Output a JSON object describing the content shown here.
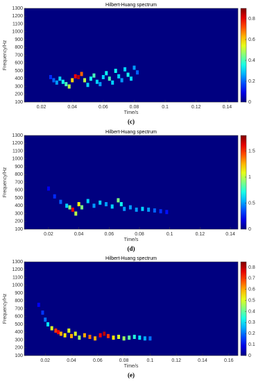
{
  "chart_data": [
    {
      "type": "spectrum",
      "title": "Hilbert-Huang spectrum",
      "x_label": "Time/s",
      "y_label": "Frequency/Hz",
      "caption": "(c)",
      "colormap": "jet",
      "xlim": [
        0.009,
        0.147
      ],
      "xticks": [
        0.02,
        0.04,
        0.06,
        0.08,
        0.1,
        0.12,
        0.14
      ],
      "ylim": [
        100,
        1300
      ],
      "yticks": [
        100,
        200,
        300,
        400,
        500,
        600,
        700,
        800,
        900,
        1000,
        1100,
        1200,
        1300
      ],
      "clim": [
        0,
        0.9
      ],
      "cticks": [
        0,
        0.2,
        0.4,
        0.6,
        0.8
      ],
      "x": [
        0.026,
        0.028,
        0.03,
        0.032,
        0.034,
        0.036,
        0.038,
        0.04,
        0.042,
        0.044,
        0.046,
        0.048,
        0.05,
        0.052,
        0.054,
        0.056,
        0.058,
        0.06,
        0.062,
        0.064,
        0.066,
        0.068,
        0.07,
        0.072,
        0.074,
        0.076,
        0.078,
        0.08,
        0.082
      ],
      "y": [
        420,
        380,
        350,
        400,
        360,
        330,
        300,
        380,
        430,
        420,
        460,
        380,
        320,
        400,
        440,
        360,
        330,
        420,
        470,
        400,
        350,
        500,
        430,
        380,
        520,
        450,
        400,
        540,
        480
      ],
      "values": [
        0.15,
        0.2,
        0.25,
        0.3,
        0.35,
        0.4,
        0.5,
        0.6,
        0.8,
        0.85,
        0.7,
        0.5,
        0.3,
        0.35,
        0.4,
        0.3,
        0.25,
        0.3,
        0.35,
        0.4,
        0.3,
        0.35,
        0.3,
        0.25,
        0.3,
        0.35,
        0.3,
        0.25,
        0.2
      ]
    },
    {
      "type": "spectrum",
      "title": "Hilbert-Huang spectrum",
      "x_label": "Time/s",
      "y_label": "Frequency/Hz",
      "caption": "(d)",
      "colormap": "jet",
      "xlim": [
        0.004,
        0.145
      ],
      "xticks": [
        0.02,
        0.04,
        0.06,
        0.08,
        0.1,
        0.12,
        0.14
      ],
      "ylim": [
        100,
        1300
      ],
      "yticks": [
        100,
        200,
        300,
        400,
        500,
        600,
        700,
        800,
        900,
        1000,
        1100,
        1200,
        1300
      ],
      "clim": [
        0,
        1.8
      ],
      "cticks": [
        0,
        0.5,
        1,
        1.5
      ],
      "x": [
        0.02,
        0.024,
        0.028,
        0.032,
        0.034,
        0.036,
        0.038,
        0.04,
        0.042,
        0.046,
        0.05,
        0.054,
        0.058,
        0.062,
        0.066,
        0.068,
        0.07,
        0.074,
        0.078,
        0.082,
        0.086,
        0.09,
        0.094,
        0.098
      ],
      "y": [
        620,
        520,
        450,
        400,
        380,
        350,
        300,
        420,
        380,
        460,
        400,
        440,
        420,
        390,
        470,
        420,
        360,
        380,
        350,
        360,
        350,
        340,
        330,
        320
      ],
      "values": [
        0.2,
        0.3,
        0.4,
        0.6,
        0.9,
        1.6,
        1.0,
        1.1,
        0.9,
        0.6,
        0.5,
        0.6,
        0.5,
        0.6,
        0.9,
        0.7,
        0.5,
        0.5,
        0.5,
        0.6,
        0.5,
        0.4,
        0.3,
        0.25
      ]
    },
    {
      "type": "spectrum",
      "title": "Hilbert-Huang spectrum",
      "x_label": "Time/s",
      "y_label": "Frequency/Hz",
      "caption": "(e)",
      "colormap": "jet",
      "xlim": [
        0.004,
        0.167
      ],
      "xticks": [
        0.02,
        0.04,
        0.06,
        0.08,
        0.1,
        0.12,
        0.14,
        0.16
      ],
      "ylim": [
        100,
        1300
      ],
      "yticks": [
        100,
        200,
        300,
        400,
        500,
        600,
        700,
        800,
        900,
        1000,
        1100,
        1200,
        1300
      ],
      "clim": [
        0,
        0.85
      ],
      "cticks": [
        0,
        0.1,
        0.2,
        0.3,
        0.4,
        0.5,
        0.6,
        0.7,
        0.8
      ],
      "x": [
        0.015,
        0.018,
        0.02,
        0.022,
        0.025,
        0.028,
        0.03,
        0.032,
        0.035,
        0.038,
        0.04,
        0.043,
        0.046,
        0.05,
        0.054,
        0.058,
        0.062,
        0.065,
        0.068,
        0.072,
        0.076,
        0.08,
        0.084,
        0.088,
        0.092,
        0.096,
        0.1
      ],
      "y": [
        750,
        650,
        560,
        500,
        450,
        420,
        400,
        380,
        360,
        420,
        350,
        380,
        330,
        360,
        340,
        320,
        360,
        380,
        350,
        330,
        340,
        320,
        330,
        340,
        330,
        320,
        320
      ],
      "values": [
        0.1,
        0.15,
        0.2,
        0.3,
        0.5,
        0.7,
        0.75,
        0.6,
        0.55,
        0.5,
        0.6,
        0.5,
        0.45,
        0.6,
        0.65,
        0.6,
        0.75,
        0.8,
        0.7,
        0.55,
        0.5,
        0.45,
        0.4,
        0.35,
        0.3,
        0.25,
        0.2
      ]
    }
  ]
}
